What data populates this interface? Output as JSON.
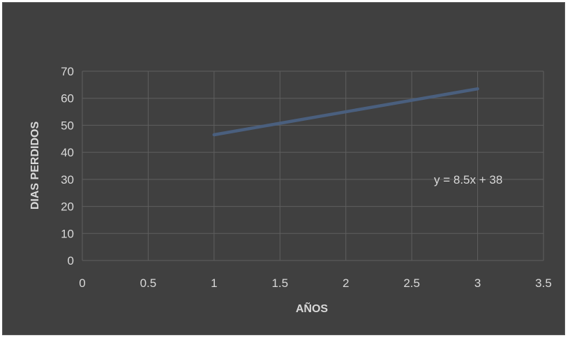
{
  "chart_data": {
    "type": "line",
    "title": "",
    "xlabel": "AÑOS",
    "ylabel": "DIAS PERDIDOS",
    "xlim": [
      0,
      3.5
    ],
    "ylim": [
      0,
      70
    ],
    "x_ticks": [
      "0",
      "0.5",
      "1",
      "1.5",
      "2",
      "2.5",
      "3",
      "3.5"
    ],
    "y_ticks": [
      "0",
      "10",
      "20",
      "30",
      "40",
      "50",
      "60",
      "70"
    ],
    "grid": true,
    "series": [
      {
        "x": [
          1,
          3
        ],
        "y": [
          46.5,
          63.5
        ],
        "color": "#4a5f7e"
      }
    ],
    "annotation": "y = 8.5x + 38",
    "background_color": "#404040",
    "text_color": "#d9d9d9",
    "grid_color": "#5f5f5f"
  }
}
